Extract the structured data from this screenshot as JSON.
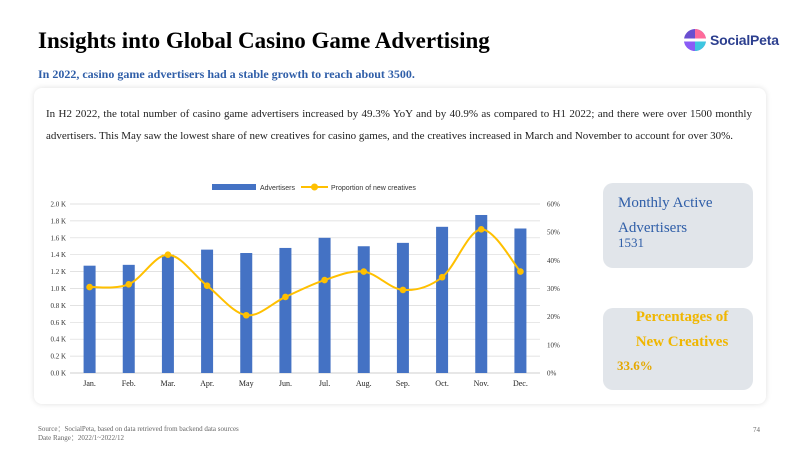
{
  "header": {
    "title": "Insights into Global Casino Game Advertising",
    "subtitle": "In 2022, casino game advertisers had a stable growth to reach about 3500."
  },
  "logo": {
    "text": "SocialPeta"
  },
  "description": "In H2 2022, the total number of casino game advertisers increased by 49.3% YoY and by 40.9% as compared to H1 2022; and there were over 1500 monthly advertisers. This May saw the lowest share of new creatives for casino games, and the creatives increased in March and November to account for over 30%.",
  "stats": [
    {
      "title": "Monthly Active Advertisers",
      "value": "1531"
    },
    {
      "title": "Percentages of New Creatives",
      "value": "33.6%"
    }
  ],
  "footer": {
    "source": "Source：SocialPeta, based on data retrieved from backend data sources",
    "date_range": "Date Range：2022/1~2022/12",
    "page_number": "74"
  },
  "colors": {
    "bar": "#4472c4",
    "line": "#ffc000",
    "accent": "#2f5ea8"
  },
  "chart_data": {
    "type": "bar",
    "categories": [
      "Jan.",
      "Feb.",
      "Mar.",
      "Apr.",
      "May",
      "Jun.",
      "Jul.",
      "Aug.",
      "Sep.",
      "Oct.",
      "Nov.",
      "Dec."
    ],
    "series": [
      {
        "name": "Advertisers",
        "type": "bar",
        "axis": "left",
        "values": [
          1270,
          1280,
          1400,
          1460,
          1420,
          1480,
          1600,
          1500,
          1540,
          1730,
          1870,
          1710
        ]
      },
      {
        "name": "Proportion of new creatives",
        "type": "line",
        "axis": "right",
        "values": [
          30.5,
          31.5,
          42,
          31,
          20.5,
          27,
          33,
          36,
          29.5,
          34,
          51,
          36
        ]
      }
    ],
    "y_left": {
      "ticks": [
        "0.0 K",
        "0.2 K",
        "0.4 K",
        "0.6 K",
        "0.8 K",
        "1.0 K",
        "1.2 K",
        "1.4 K",
        "1.6 K",
        "1.8 K",
        "2.0 K"
      ],
      "lim": [
        0,
        2000
      ]
    },
    "y_right": {
      "ticks": [
        "0%",
        "10%",
        "20%",
        "30%",
        "40%",
        "50%",
        "60%"
      ],
      "lim": [
        0,
        60
      ]
    },
    "grid": true,
    "legend": "top"
  }
}
